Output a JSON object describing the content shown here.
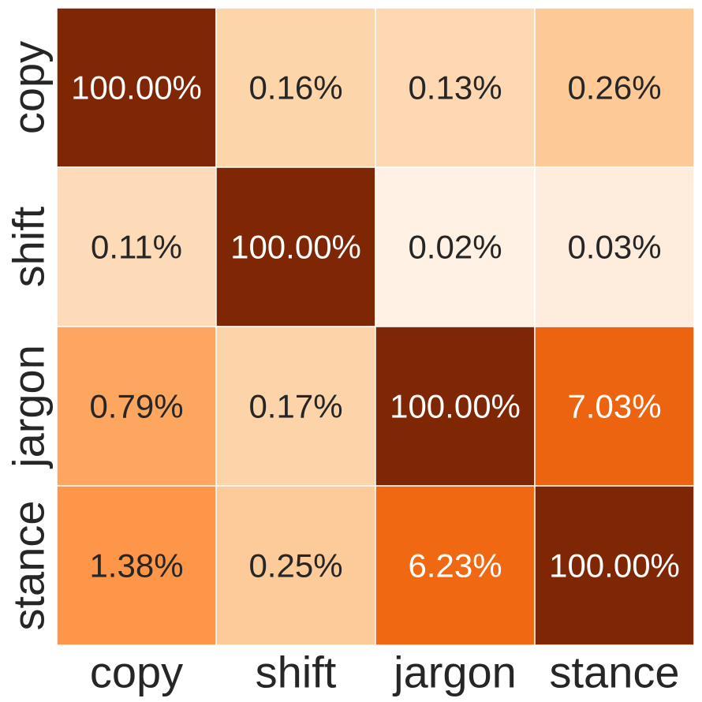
{
  "chart_data": {
    "type": "heatmap",
    "title": "",
    "xlabel": "",
    "ylabel": "",
    "x_categories": [
      "copy",
      "shift",
      "jargon",
      "stance"
    ],
    "y_categories": [
      "copy",
      "shift",
      "jargon",
      "stance"
    ],
    "values": [
      [
        100.0,
        0.16,
        0.13,
        0.26
      ],
      [
        0.11,
        100.0,
        0.02,
        0.03
      ],
      [
        0.79,
        0.17,
        100.0,
        7.03
      ],
      [
        1.38,
        0.25,
        6.23,
        100.0
      ]
    ],
    "value_labels": [
      [
        "100.00%",
        "0.16%",
        "0.13%",
        "0.26%"
      ],
      [
        "0.11%",
        "100.00%",
        "0.02%",
        "0.03%"
      ],
      [
        "0.79%",
        "0.17%",
        "100.00%",
        "7.03%"
      ],
      [
        "1.38%",
        "0.25%",
        "6.23%",
        "100.00%"
      ]
    ],
    "colormap": "Oranges",
    "colors": {
      "darkest": "#7f2704",
      "lightest": "#fff5eb",
      "text_dark": "#262626",
      "text_light": "#ffffff",
      "grid_line": "#ffffff"
    },
    "grid": true,
    "colorbar": false
  }
}
